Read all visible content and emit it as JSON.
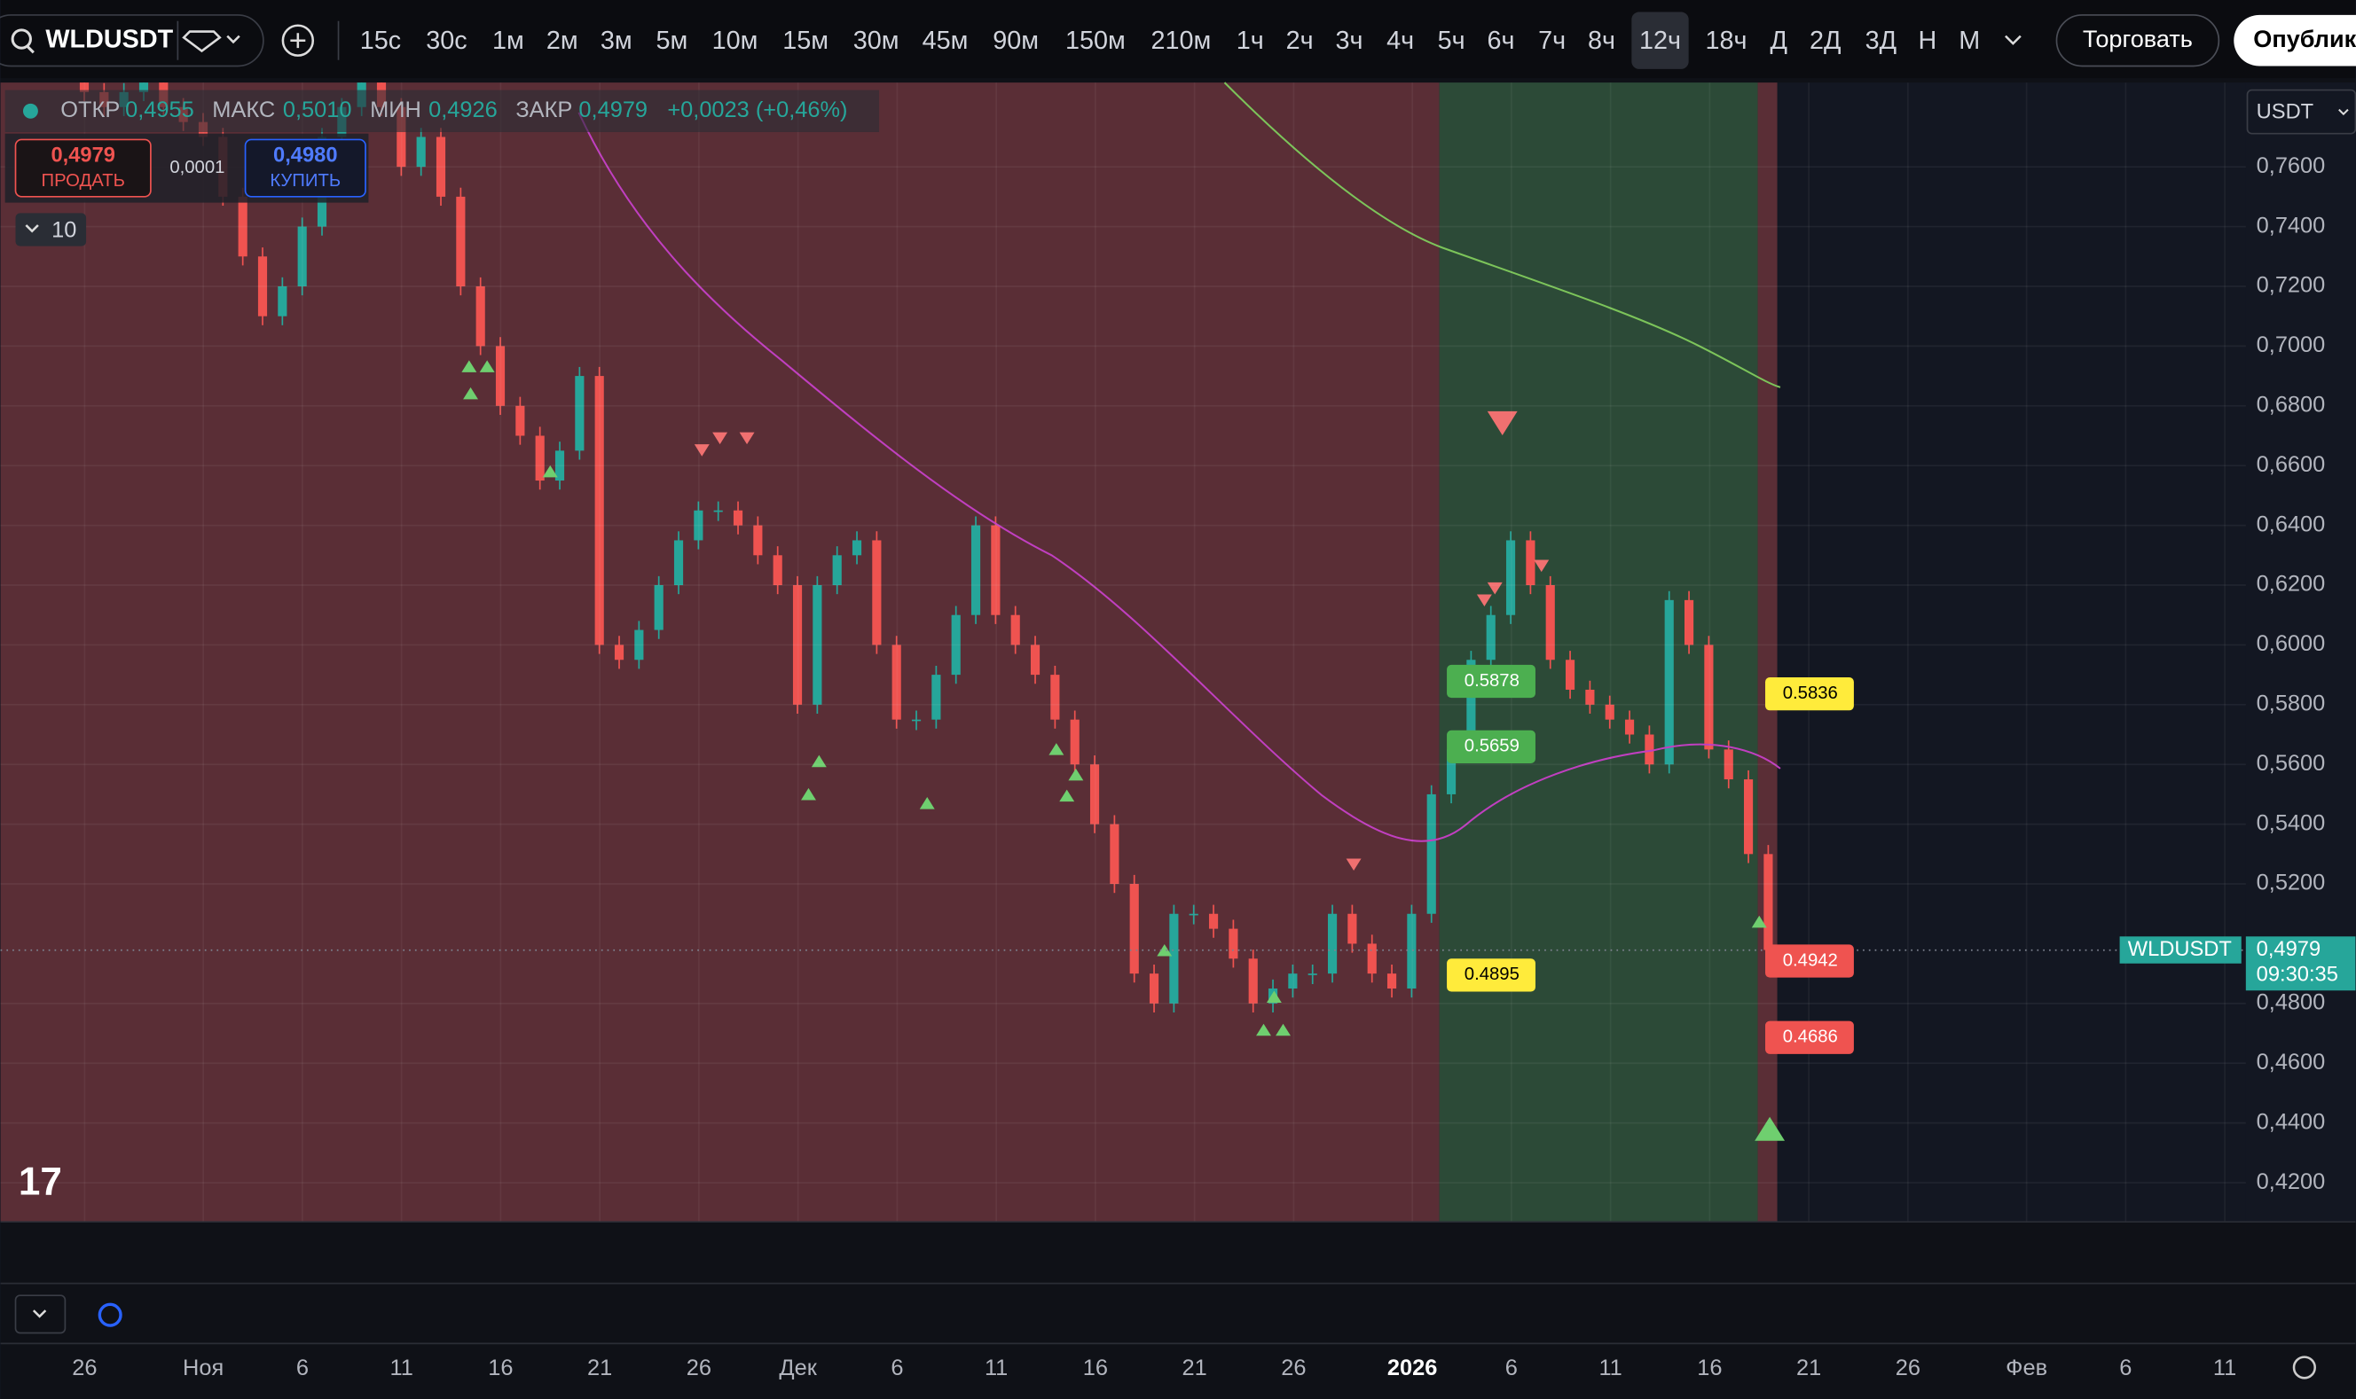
{
  "toolbar": {
    "symbol": "WLDUSDT",
    "intervals": [
      "15с",
      "30с",
      "1м",
      "2м",
      "3м",
      "5м",
      "10м",
      "15м",
      "30м",
      "45м",
      "90м",
      "150м",
      "210м",
      "1ч",
      "2ч",
      "3ч",
      "4ч",
      "5ч",
      "6ч",
      "7ч",
      "8ч",
      "12ч",
      "18ч",
      "Д",
      "2Д",
      "3Д",
      "Н",
      "М"
    ],
    "active_interval": "12ч",
    "trade_button": "Торговать",
    "publish_button": "Опублик"
  },
  "legend": {
    "open_label": "ОТКР",
    "open": "0,4955",
    "high_label": "МАКС",
    "high": "0,5010",
    "low_label": "МИН",
    "low": "0,4926",
    "close_label": "ЗАКР",
    "close": "0,4979",
    "change": "+0,0023 (+0,46%)"
  },
  "trade_panel": {
    "sell_price": "0,4979",
    "sell_label": "ПРОДАТЬ",
    "spread": "0,0001",
    "buy_price": "0,4980",
    "buy_label": "КУПИТЬ",
    "indicators_count": "10"
  },
  "currency": "USDT",
  "chart_data": {
    "type": "candlestick",
    "values": [
      0.79,
      0.795,
      0.8,
      0.79,
      0.785,
      0.78,
      0.785,
      0.79,
      0.78,
      0.775,
      0.77,
      0.75,
      0.73,
      0.71,
      0.72,
      0.74,
      0.77,
      0.78,
      0.79,
      0.78,
      0.76,
      0.77,
      0.75,
      0.72,
      0.7,
      0.68,
      0.67,
      0.655,
      0.665,
      0.69,
      0.6,
      0.595,
      0.605,
      0.62,
      0.635,
      0.645,
      0.645,
      0.64,
      0.63,
      0.62,
      0.58,
      0.62,
      0.63,
      0.635,
      0.6,
      0.575,
      0.575,
      0.59,
      0.61,
      0.64,
      0.61,
      0.6,
      0.59,
      0.575,
      0.56,
      0.54,
      0.52,
      0.49,
      0.48,
      0.51,
      0.51,
      0.505,
      0.495,
      0.48,
      0.485,
      0.49,
      0.49,
      0.51,
      0.5,
      0.49,
      0.485,
      0.51,
      0.55,
      0.565,
      0.595,
      0.61,
      0.635,
      0.62,
      0.595,
      0.585,
      0.58,
      0.575,
      0.57,
      0.56,
      0.615,
      0.6,
      0.565,
      0.555,
      0.53,
      0.4979
    ],
    "up_color": "#26a69a",
    "down_color": "#ef5350",
    "ylim": [
      0.4069,
      0.7882
    ],
    "yticks": [
      {
        "value": 0.76,
        "label": "0,7600"
      },
      {
        "value": 0.74,
        "label": "0,7400"
      },
      {
        "value": 0.72,
        "label": "0,7200"
      },
      {
        "value": 0.7,
        "label": "0,7000"
      },
      {
        "value": 0.68,
        "label": "0,6800"
      },
      {
        "value": 0.66,
        "label": "0,6600"
      },
      {
        "value": 0.64,
        "label": "0,6400"
      },
      {
        "value": 0.62,
        "label": "0,6200"
      },
      {
        "value": 0.6,
        "label": "0,6000"
      },
      {
        "value": 0.58,
        "label": "0,5800"
      },
      {
        "value": 0.56,
        "label": "0,5600"
      },
      {
        "value": 0.54,
        "label": "0,5400"
      },
      {
        "value": 0.52,
        "label": "0,5200"
      },
      {
        "value": 0.48,
        "label": "0,4800"
      },
      {
        "value": 0.46,
        "label": "0,4600"
      },
      {
        "value": 0.44,
        "label": "0,4400"
      },
      {
        "value": 0.42,
        "label": "0,4200"
      }
    ],
    "time_labels": [
      "26",
      "Ноя",
      "6",
      "11",
      "16",
      "21",
      "26",
      "Дек",
      "6",
      "11",
      "16",
      "21",
      "26",
      "2026",
      "6",
      "11",
      "16",
      "21",
      "26",
      "Фев",
      "6",
      "11"
    ],
    "price_tags": [
      {
        "value": 0.5878,
        "color": "#4caf50"
      },
      {
        "value": 0.5659,
        "color": "#4caf50"
      },
      {
        "value": 0.4895,
        "color": "#ffeb3b"
      },
      {
        "value": 0.5836,
        "color": "#ffeb3b"
      },
      {
        "value": 0.4942,
        "color": "#ef5350"
      },
      {
        "value": 0.4686,
        "color": "#ef5350"
      }
    ],
    "last_price": {
      "symbol": "WLDUSDT",
      "value": {
        "value": 0.4979,
        "label": "0,4979"
      },
      "countdown": "09:30:35"
    },
    "grid": true
  }
}
